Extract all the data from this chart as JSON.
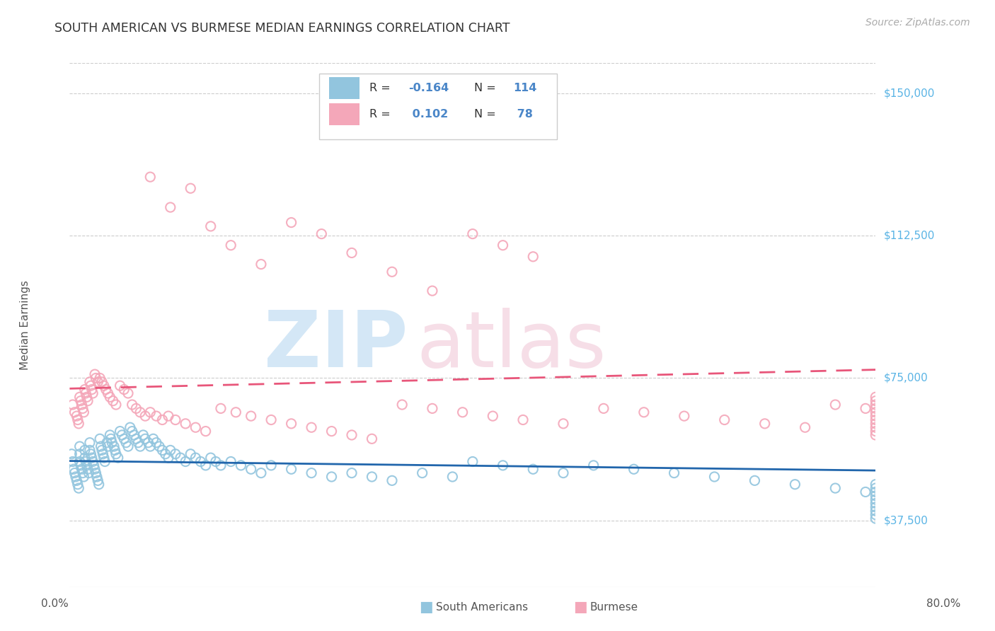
{
  "title": "SOUTH AMERICAN VS BURMESE MEDIAN EARNINGS CORRELATION CHART",
  "source": "Source: ZipAtlas.com",
  "ylabel": "Median Earnings",
  "ytick_labels": [
    "$37,500",
    "$75,000",
    "$112,500",
    "$150,000"
  ],
  "ytick_values": [
    37500,
    75000,
    112500,
    150000
  ],
  "ymin": 20000,
  "ymax": 158000,
  "xmin": 0.0,
  "xmax": 0.8,
  "blue_color": "#92c5de",
  "pink_color": "#f4a7b9",
  "blue_line_color": "#2166ac",
  "pink_line_color": "#e8567a",
  "south_american_R": -0.164,
  "south_american_N": 114,
  "burmese_R": 0.102,
  "burmese_N": 78,
  "sa_x": [
    0.002,
    0.003,
    0.004,
    0.005,
    0.006,
    0.007,
    0.008,
    0.009,
    0.01,
    0.01,
    0.01,
    0.011,
    0.012,
    0.013,
    0.014,
    0.015,
    0.015,
    0.016,
    0.017,
    0.018,
    0.019,
    0.02,
    0.02,
    0.021,
    0.022,
    0.023,
    0.024,
    0.025,
    0.026,
    0.027,
    0.028,
    0.029,
    0.03,
    0.031,
    0.032,
    0.033,
    0.034,
    0.035,
    0.037,
    0.038,
    0.04,
    0.041,
    0.042,
    0.044,
    0.045,
    0.046,
    0.048,
    0.05,
    0.052,
    0.054,
    0.056,
    0.058,
    0.06,
    0.062,
    0.064,
    0.066,
    0.068,
    0.07,
    0.073,
    0.075,
    0.078,
    0.08,
    0.083,
    0.086,
    0.089,
    0.092,
    0.095,
    0.098,
    0.1,
    0.105,
    0.11,
    0.115,
    0.12,
    0.125,
    0.13,
    0.135,
    0.14,
    0.145,
    0.15,
    0.16,
    0.17,
    0.18,
    0.19,
    0.2,
    0.22,
    0.24,
    0.26,
    0.28,
    0.3,
    0.32,
    0.35,
    0.38,
    0.4,
    0.43,
    0.46,
    0.49,
    0.52,
    0.56,
    0.6,
    0.64,
    0.68,
    0.72,
    0.76,
    0.79,
    0.8,
    0.8,
    0.8,
    0.8,
    0.8,
    0.8,
    0.8,
    0.8,
    0.8,
    0.8
  ],
  "sa_y": [
    55000,
    53000,
    51000,
    50000,
    49000,
    48000,
    47000,
    46000,
    57000,
    55000,
    53000,
    52000,
    51000,
    50000,
    49000,
    56000,
    54000,
    53000,
    52000,
    51000,
    50000,
    58000,
    56000,
    55000,
    54000,
    53000,
    52000,
    51000,
    50000,
    49000,
    48000,
    47000,
    59000,
    57000,
    56000,
    55000,
    54000,
    53000,
    58000,
    57000,
    60000,
    59000,
    58000,
    57000,
    56000,
    55000,
    54000,
    61000,
    60000,
    59000,
    58000,
    57000,
    62000,
    61000,
    60000,
    59000,
    58000,
    57000,
    60000,
    59000,
    58000,
    57000,
    59000,
    58000,
    57000,
    56000,
    55000,
    54000,
    56000,
    55000,
    54000,
    53000,
    55000,
    54000,
    53000,
    52000,
    54000,
    53000,
    52000,
    53000,
    52000,
    51000,
    50000,
    52000,
    51000,
    50000,
    49000,
    50000,
    49000,
    48000,
    50000,
    49000,
    53000,
    52000,
    51000,
    50000,
    52000,
    51000,
    50000,
    49000,
    48000,
    47000,
    46000,
    45000,
    47000,
    46000,
    45000,
    44000,
    43000,
    42000,
    41000,
    40000,
    39000,
    38000
  ],
  "bu_x": [
    0.003,
    0.005,
    0.007,
    0.008,
    0.009,
    0.01,
    0.011,
    0.012,
    0.013,
    0.014,
    0.015,
    0.016,
    0.017,
    0.018,
    0.02,
    0.021,
    0.022,
    0.023,
    0.025,
    0.026,
    0.028,
    0.03,
    0.032,
    0.034,
    0.036,
    0.038,
    0.04,
    0.043,
    0.046,
    0.05,
    0.054,
    0.058,
    0.062,
    0.066,
    0.07,
    0.075,
    0.08,
    0.086,
    0.092,
    0.098,
    0.105,
    0.115,
    0.125,
    0.135,
    0.15,
    0.165,
    0.18,
    0.2,
    0.22,
    0.24,
    0.26,
    0.28,
    0.3,
    0.33,
    0.36,
    0.39,
    0.42,
    0.45,
    0.49,
    0.53,
    0.57,
    0.61,
    0.65,
    0.69,
    0.73,
    0.76,
    0.79,
    0.8,
    0.8,
    0.8,
    0.8,
    0.8,
    0.8,
    0.8,
    0.8,
    0.8,
    0.8,
    0.8
  ],
  "bu_y": [
    68000,
    66000,
    65000,
    64000,
    63000,
    70000,
    69000,
    68000,
    67000,
    66000,
    72000,
    71000,
    70000,
    69000,
    74000,
    73000,
    72000,
    71000,
    76000,
    75000,
    74000,
    75000,
    74000,
    73000,
    72000,
    71000,
    70000,
    69000,
    68000,
    73000,
    72000,
    71000,
    68000,
    67000,
    66000,
    65000,
    66000,
    65000,
    64000,
    65000,
    64000,
    63000,
    62000,
    61000,
    67000,
    66000,
    65000,
    64000,
    63000,
    62000,
    61000,
    60000,
    59000,
    68000,
    67000,
    66000,
    65000,
    64000,
    63000,
    67000,
    66000,
    65000,
    64000,
    63000,
    62000,
    68000,
    67000,
    70000,
    69000,
    68000,
    67000,
    66000,
    65000,
    64000,
    63000,
    62000,
    61000,
    60000
  ],
  "bu_high_x": [
    0.08,
    0.1,
    0.12,
    0.14,
    0.16,
    0.19,
    0.22,
    0.25,
    0.28,
    0.32,
    0.36,
    0.4,
    0.43,
    0.46
  ],
  "bu_high_y": [
    128000,
    120000,
    125000,
    115000,
    110000,
    105000,
    116000,
    113000,
    108000,
    103000,
    98000,
    113000,
    110000,
    107000
  ]
}
